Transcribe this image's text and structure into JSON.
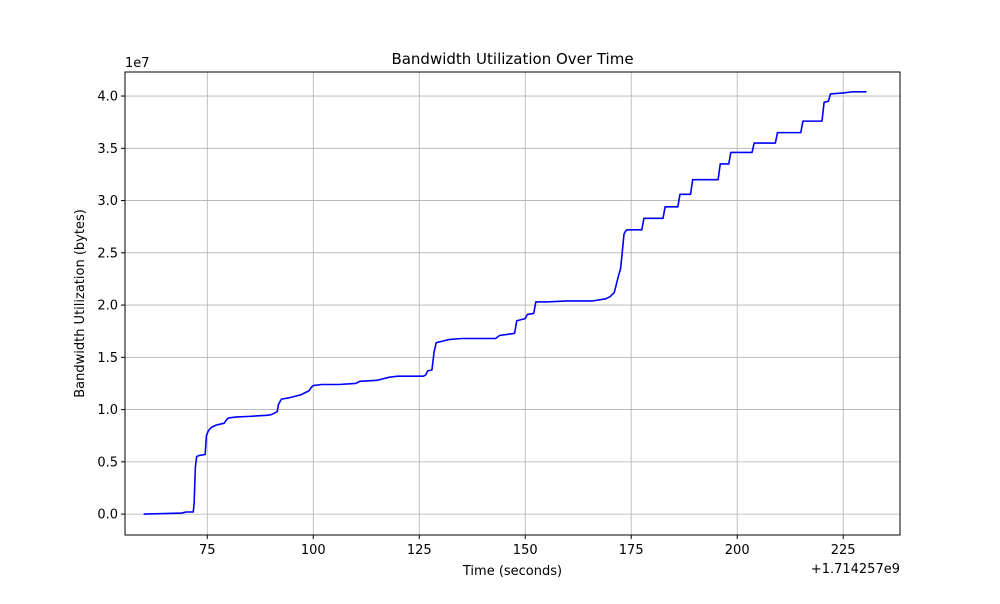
{
  "chart_data": {
    "type": "line",
    "title": "Bandwidth Utilization Over Time",
    "xlabel": "Time (seconds)",
    "ylabel": "Bandwidth Utilization (bytes)",
    "x_offset_label": "+1.714257e9",
    "y_scale_label": "1e7",
    "xlim": [
      1714257055.6,
      1714257238.4
    ],
    "ylim": [
      -2000000,
      42300000
    ],
    "x_ticks": [
      {
        "value": 1714257075,
        "label": "75"
      },
      {
        "value": 1714257100,
        "label": "100"
      },
      {
        "value": 1714257125,
        "label": "125"
      },
      {
        "value": 1714257150,
        "label": "150"
      },
      {
        "value": 1714257175,
        "label": "175"
      },
      {
        "value": 1714257200,
        "label": "200"
      },
      {
        "value": 1714257225,
        "label": "225"
      }
    ],
    "y_ticks": [
      {
        "value": 0,
        "label": "0.0"
      },
      {
        "value": 5000000,
        "label": "0.5"
      },
      {
        "value": 10000000,
        "label": "1.0"
      },
      {
        "value": 15000000,
        "label": "1.5"
      },
      {
        "value": 20000000,
        "label": "2.0"
      },
      {
        "value": 25000000,
        "label": "2.5"
      },
      {
        "value": 30000000,
        "label": "3.0"
      },
      {
        "value": 35000000,
        "label": "3.5"
      },
      {
        "value": 40000000,
        "label": "4.0"
      }
    ],
    "grid": true,
    "series": [
      {
        "name": "",
        "color": "#0000ff",
        "x": [
          1714257060,
          1714257065,
          1714257069,
          1714257070,
          1714257071.7,
          1714257071.9,
          1714257072.2,
          1714257072.5,
          1714257073,
          1714257074.5,
          1714257074.8,
          1714257075.3,
          1714257076,
          1714257077,
          1714257078,
          1714257079,
          1714257079.5,
          1714257080,
          1714257082,
          1714257085,
          1714257089,
          1714257090,
          1714257091.5,
          1714257091.8,
          1714257092.5,
          1714257094,
          1714257096,
          1714257097,
          1714257098,
          1714257099,
          1714257099.5,
          1714257100,
          1714257102,
          1714257106,
          1714257110,
          1714257111,
          1714257115,
          1714257118,
          1714257120,
          1714257126,
          1714257126.5,
          1714257127,
          1714257128,
          1714257128.5,
          1714257129,
          1714257131,
          1714257132,
          1714257135,
          1714257143,
          1714257144,
          1714257146,
          1714257147.5,
          1714257148,
          1714257150,
          1714257150.5,
          1714257152,
          1714257152.5,
          1714257155,
          1714257160,
          1714257166,
          1714257169,
          1714257170,
          1714257171,
          1714257171.5,
          1714257172,
          1714257172.5,
          1714257173,
          1714257173.3,
          1714257173.7,
          1714257174,
          1714257175,
          1714257177.5,
          1714257178,
          1714257182.5,
          1714257183,
          1714257186,
          1714257186.5,
          1714257189,
          1714257189.5,
          1714257195.5,
          1714257196,
          1714257198,
          1714257198.5,
          1714257203.5,
          1714257204,
          1714257209,
          1714257209.5,
          1714257215,
          1714257215.5,
          1714257220,
          1714257220.5,
          1714257221.5,
          1714257222,
          1714257225,
          1714257227,
          1714257230.5
        ],
        "values": [
          0,
          50000,
          100000,
          200000,
          200000,
          1000000,
          4500000,
          5500000,
          5600000,
          5700000,
          7500000,
          8000000,
          8300000,
          8500000,
          8600000,
          8700000,
          9000000,
          9200000,
          9300000,
          9350000,
          9450000,
          9500000,
          9800000,
          10500000,
          11000000,
          11100000,
          11300000,
          11400000,
          11600000,
          11800000,
          12100000,
          12300000,
          12400000,
          12400000,
          12500000,
          12700000,
          12800000,
          13100000,
          13200000,
          13200000,
          13300000,
          13700000,
          13800000,
          15500000,
          16400000,
          16600000,
          16700000,
          16800000,
          16800000,
          17100000,
          17200000,
          17300000,
          18500000,
          18700000,
          19100000,
          19200000,
          20300000,
          20300000,
          20400000,
          20400000,
          20600000,
          20800000,
          21200000,
          22000000,
          22800000,
          23500000,
          25500000,
          26800000,
          27100000,
          27200000,
          27200000,
          27200000,
          28300000,
          28300000,
          29400000,
          29400000,
          30600000,
          30600000,
          32000000,
          32000000,
          33500000,
          33500000,
          34600000,
          34600000,
          35500000,
          35500000,
          36500000,
          36500000,
          37600000,
          37600000,
          39400000,
          39500000,
          40200000,
          40300000,
          40400000,
          40400000
        ]
      }
    ]
  }
}
